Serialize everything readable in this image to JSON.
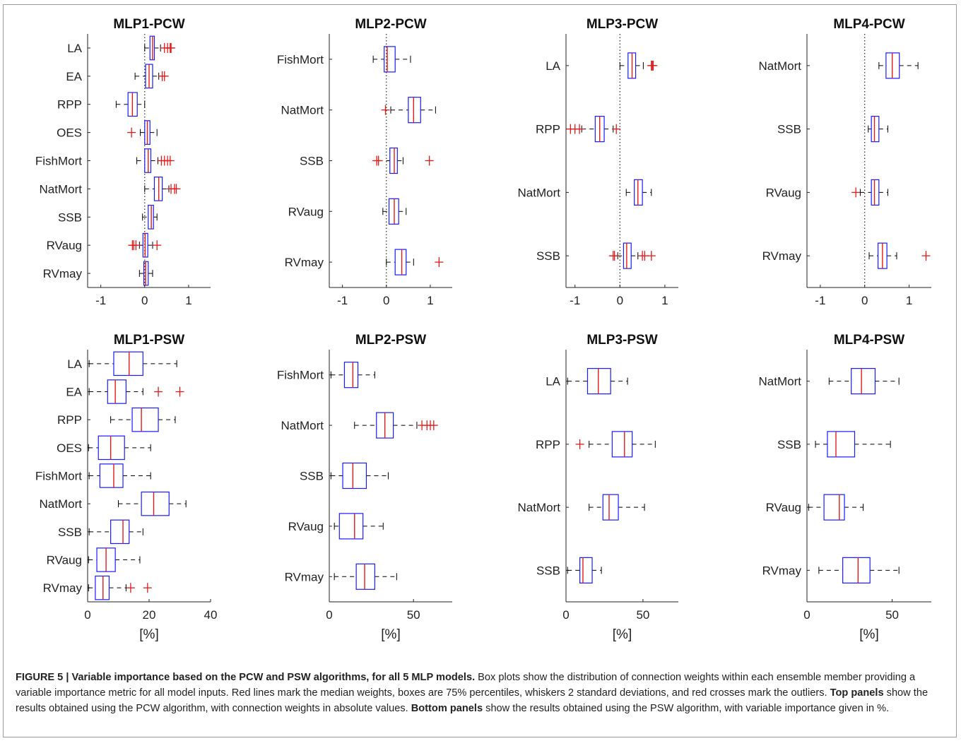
{
  "chart_data": [
    {
      "type": "boxplot",
      "title": "MLP1-PCW",
      "xticks": [
        "-1",
        "0",
        "1"
      ],
      "xlim": [
        -1.3,
        1.5
      ],
      "xlabel": "",
      "reference_line": 0,
      "categories": [
        "LA",
        "EA",
        "RPP",
        "OES",
        "FishMort",
        "NatMort",
        "SSB",
        "RVaug",
        "RVmay"
      ],
      "boxes": [
        {
          "lw": 0.0,
          "q1": 0.12,
          "med": 0.18,
          "q3": 0.22,
          "uw": 0.36,
          "out": [
            0.45,
            0.52,
            0.58,
            0.6
          ]
        },
        {
          "lw": -0.22,
          "q1": 0.02,
          "med": 0.1,
          "q3": 0.18,
          "uw": 0.32,
          "out": [
            0.4,
            0.45
          ]
        },
        {
          "lw": -0.65,
          "q1": -0.38,
          "med": -0.28,
          "q3": -0.17,
          "uw": 0.0,
          "out": []
        },
        {
          "lw": -0.1,
          "q1": 0.0,
          "med": 0.06,
          "q3": 0.12,
          "uw": 0.28,
          "out": [
            -0.3
          ]
        },
        {
          "lw": -0.18,
          "q1": 0.0,
          "med": 0.08,
          "q3": 0.14,
          "uw": 0.3,
          "out": [
            0.38,
            0.45,
            0.52,
            0.58
          ]
        },
        {
          "lw": 0.0,
          "q1": 0.22,
          "med": 0.32,
          "q3": 0.4,
          "uw": 0.55,
          "out": [
            0.6,
            0.68,
            0.72
          ]
        },
        {
          "lw": -0.05,
          "q1": 0.08,
          "med": 0.15,
          "q3": 0.2,
          "uw": 0.28,
          "out": []
        },
        {
          "lw": -0.12,
          "q1": -0.04,
          "med": 0.01,
          "q3": 0.07,
          "uw": 0.18,
          "out": [
            -0.28,
            -0.25,
            -0.2,
            0.28
          ]
        },
        {
          "lw": -0.12,
          "q1": -0.02,
          "med": 0.02,
          "q3": 0.08,
          "uw": 0.18,
          "out": []
        }
      ]
    },
    {
      "type": "boxplot",
      "title": "MLP2-PCW",
      "xticks": [
        "-1",
        "0",
        "1"
      ],
      "xlim": [
        -1.3,
        1.5
      ],
      "xlabel": "",
      "reference_line": 0,
      "categories": [
        "FishMort",
        "NatMort",
        "SSB",
        "RVaug",
        "RVmay"
      ],
      "boxes": [
        {
          "lw": -0.3,
          "q1": -0.05,
          "med": 0.02,
          "q3": 0.2,
          "uw": 0.55,
          "out": []
        },
        {
          "lw": 0.1,
          "q1": 0.5,
          "med": 0.62,
          "q3": 0.78,
          "uw": 1.12,
          "out": [
            -0.02
          ]
        },
        {
          "lw": -0.18,
          "q1": 0.08,
          "med": 0.18,
          "q3": 0.25,
          "uw": 0.38,
          "out": [
            -0.22,
            -0.18,
            0.98
          ]
        },
        {
          "lw": -0.08,
          "q1": 0.06,
          "med": 0.18,
          "q3": 0.28,
          "uw": 0.45,
          "out": []
        },
        {
          "lw": 0.0,
          "q1": 0.2,
          "med": 0.35,
          "q3": 0.45,
          "uw": 0.62,
          "out": [
            1.2
          ]
        }
      ]
    },
    {
      "type": "boxplot",
      "title": "MLP3-PCW",
      "xticks": [
        "-1",
        "0",
        "1"
      ],
      "xlim": [
        -1.2,
        1.3
      ],
      "xlabel": "",
      "reference_line": 0,
      "categories": [
        "LA",
        "RPP",
        "NatMort",
        "SSB"
      ],
      "boxes": [
        {
          "lw": 0.0,
          "q1": 0.18,
          "med": 0.27,
          "q3": 0.35,
          "uw": 0.52,
          "out": [
            0.7,
            0.74,
            0.72
          ]
        },
        {
          "lw": -0.85,
          "q1": -0.55,
          "med": -0.45,
          "q3": -0.35,
          "uw": -0.15,
          "out": [
            -1.1,
            -1.0,
            -0.9,
            -0.08
          ]
        },
        {
          "lw": 0.14,
          "q1": 0.32,
          "med": 0.4,
          "q3": 0.5,
          "uw": 0.7,
          "out": []
        },
        {
          "lw": -0.05,
          "q1": 0.08,
          "med": 0.15,
          "q3": 0.25,
          "uw": 0.4,
          "out": [
            -0.15,
            -0.12,
            0.5,
            0.55,
            0.7
          ]
        }
      ]
    },
    {
      "type": "boxplot",
      "title": "MLP4-PCW",
      "xticks": [
        "-1",
        "0",
        "1"
      ],
      "xlim": [
        -1.3,
        1.5
      ],
      "xlabel": "",
      "reference_line": 0,
      "categories": [
        "NatMort",
        "SSB",
        "RVaug",
        "RVmay"
      ],
      "boxes": [
        {
          "lw": 0.32,
          "q1": 0.48,
          "med": 0.62,
          "q3": 0.78,
          "uw": 1.2,
          "out": []
        },
        {
          "lw": 0.08,
          "q1": 0.15,
          "med": 0.22,
          "q3": 0.32,
          "uw": 0.52,
          "out": []
        },
        {
          "lw": -0.1,
          "q1": 0.15,
          "med": 0.22,
          "q3": 0.32,
          "uw": 0.52,
          "out": [
            -0.2
          ]
        },
        {
          "lw": 0.1,
          "q1": 0.3,
          "med": 0.4,
          "q3": 0.5,
          "uw": 0.72,
          "out": [
            1.38
          ]
        }
      ]
    },
    {
      "type": "boxplot",
      "title": "MLP1-PSW",
      "xticks": [
        "0",
        "20",
        "40"
      ],
      "xlim": [
        0,
        40
      ],
      "xlabel": "[%]",
      "reference_line": null,
      "categories": [
        "LA",
        "EA",
        "RPP",
        "OES",
        "FishMort",
        "NatMort",
        "SSB",
        "RVaug",
        "RVmay"
      ],
      "boxes": [
        {
          "lw": 0.5,
          "q1": 8.5,
          "med": 13.5,
          "q3": 18.0,
          "uw": 29.0,
          "out": []
        },
        {
          "lw": 0.5,
          "q1": 6.5,
          "med": 9.0,
          "q3": 12.5,
          "uw": 18.0,
          "out": [
            23.0,
            30.0
          ]
        },
        {
          "lw": 7.5,
          "q1": 14.5,
          "med": 17.5,
          "q3": 23.0,
          "uw": 28.5,
          "out": []
        },
        {
          "lw": 0.3,
          "q1": 3.5,
          "med": 7.5,
          "q3": 12.0,
          "uw": 20.5,
          "out": []
        },
        {
          "lw": 0.5,
          "q1": 4.0,
          "med": 8.5,
          "q3": 11.5,
          "uw": 20.5,
          "out": []
        },
        {
          "lw": 10.0,
          "q1": 17.5,
          "med": 21.5,
          "q3": 26.5,
          "uw": 32.0,
          "out": []
        },
        {
          "lw": 0.5,
          "q1": 7.5,
          "med": 11.5,
          "q3": 13.5,
          "uw": 18.0,
          "out": []
        },
        {
          "lw": 0.3,
          "q1": 3.0,
          "med": 6.0,
          "q3": 9.0,
          "uw": 17.0,
          "out": []
        },
        {
          "lw": 0.3,
          "q1": 2.5,
          "med": 5.0,
          "q3": 7.0,
          "uw": 12.5,
          "out": [
            14.0,
            19.5
          ]
        }
      ]
    },
    {
      "type": "boxplot",
      "title": "MLP2-PSW",
      "xticks": [
        "0",
        "50"
      ],
      "xlim": [
        0,
        73
      ],
      "xlabel": "[%]",
      "reference_line": null,
      "categories": [
        "FishMort",
        "NatMort",
        "SSB",
        "RVaug",
        "RVmay"
      ],
      "boxes": [
        {
          "lw": 1.0,
          "q1": 9.0,
          "med": 14.0,
          "q3": 17.0,
          "uw": 27.0,
          "out": []
        },
        {
          "lw": 15.0,
          "q1": 28.0,
          "med": 33.0,
          "q3": 38.0,
          "uw": 52.0,
          "out": [
            55.0,
            58.0,
            60.0,
            62.0
          ]
        },
        {
          "lw": 1.0,
          "q1": 8.0,
          "med": 14.0,
          "q3": 22.0,
          "uw": 35.0,
          "out": []
        },
        {
          "lw": 3.0,
          "q1": 6.0,
          "med": 15.0,
          "q3": 20.0,
          "uw": 32.0,
          "out": []
        },
        {
          "lw": 3.0,
          "q1": 16.0,
          "med": 21.0,
          "q3": 27.0,
          "uw": 40.0,
          "out": []
        }
      ]
    },
    {
      "type": "boxplot",
      "title": "MLP3-PSW",
      "xticks": [
        "0",
        "50"
      ],
      "xlim": [
        0,
        73
      ],
      "xlabel": "[%]",
      "reference_line": null,
      "categories": [
        "LA",
        "RPP",
        "NatMort",
        "SSB"
      ],
      "boxes": [
        {
          "lw": 1.0,
          "q1": 14.0,
          "med": 21.0,
          "q3": 29.0,
          "uw": 40.0,
          "out": []
        },
        {
          "lw": 15.0,
          "q1": 30.0,
          "med": 38.0,
          "q3": 43.0,
          "uw": 58.0,
          "out": [
            9.0
          ]
        },
        {
          "lw": 15.0,
          "q1": 24.0,
          "med": 28.0,
          "q3": 34.0,
          "uw": 51.0,
          "out": []
        },
        {
          "lw": 1.0,
          "q1": 9.0,
          "med": 11.0,
          "q3": 17.0,
          "uw": 23.0,
          "out": []
        }
      ]
    },
    {
      "type": "boxplot",
      "title": "MLP4-PSW",
      "xticks": [
        "0",
        "50"
      ],
      "xlim": [
        0,
        73
      ],
      "xlabel": "[%]",
      "reference_line": null,
      "categories": [
        "NatMort",
        "SSB",
        "RVaug",
        "RVmay"
      ],
      "boxes": [
        {
          "lw": 13.0,
          "q1": 26.0,
          "med": 32.0,
          "q3": 40.0,
          "uw": 54.0,
          "out": []
        },
        {
          "lw": 5.0,
          "q1": 12.0,
          "med": 17.0,
          "q3": 28.0,
          "uw": 49.0,
          "out": []
        },
        {
          "lw": 1.0,
          "q1": 10.0,
          "med": 19.0,
          "q3": 22.0,
          "uw": 33.0,
          "out": []
        },
        {
          "lw": 7.0,
          "q1": 21.0,
          "med": 30.0,
          "q3": 37.0,
          "uw": 54.0,
          "out": []
        }
      ]
    }
  ],
  "caption": {
    "figure_label": "FIGURE 5 | Variable importance based on the PCW and PSW algorithms, for all 5 MLP models.",
    "text1": " Box plots show the distribution of connection weights within each ensemble member providing a variable importance metric for all model inputs. Red lines mark the median weights, boxes are 75% percentiles, whiskers 2 standard deviations, and red crosses mark the outliers. ",
    "top_label": "Top panels",
    "text2": " show the results obtained using the PCW algorithm, with connection weights in absolute values. ",
    "bottom_label": "Bottom panels",
    "text3": " show the results obtained using the PSW algorithm, with variable importance given in %."
  },
  "colors": {
    "box": "#1a1aff",
    "median": "#e31a1a",
    "outlier": "#e31a1a",
    "whisker": "#000000"
  }
}
